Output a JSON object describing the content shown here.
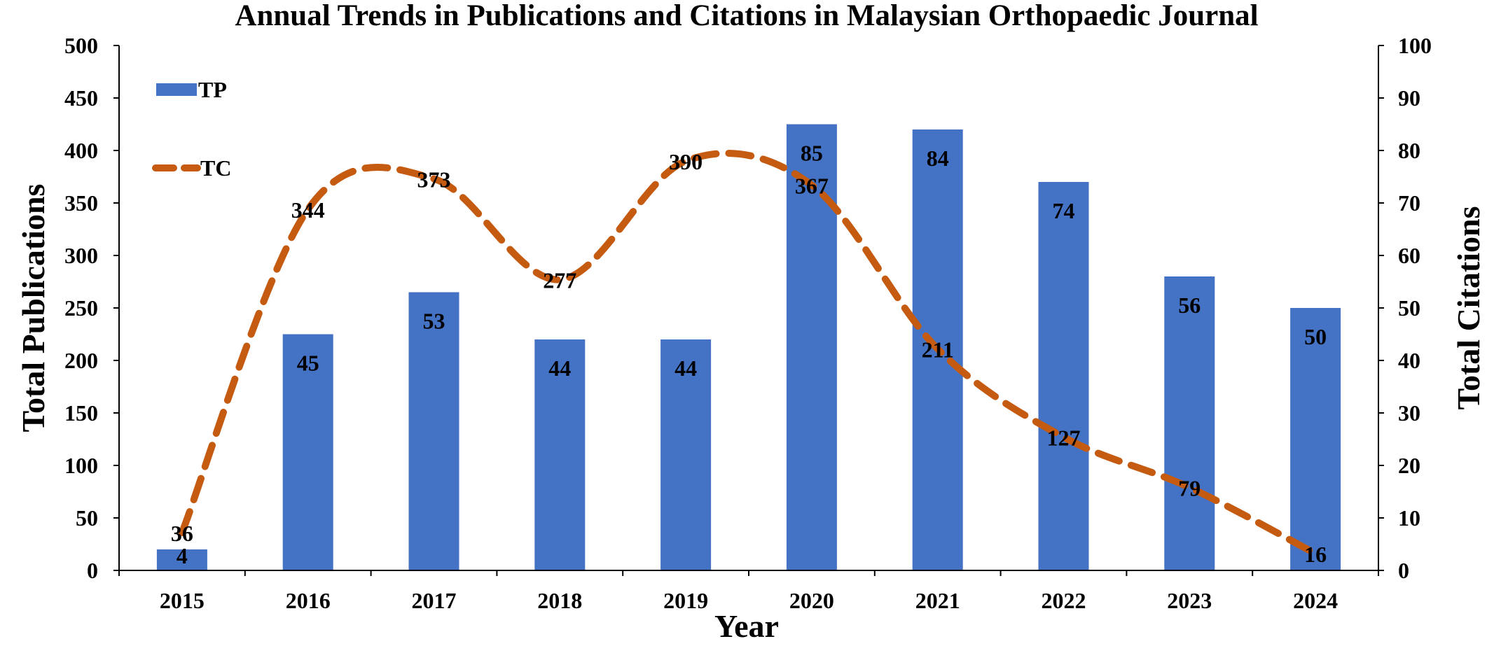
{
  "chart_data": {
    "type": "bar+line",
    "title": "Annual Trends in Publications and Citations in Malaysian Orthopaedic Journal",
    "xlabel": "Year",
    "ylabel_left": "Total Publications",
    "ylabel_right": "Total Citations",
    "categories": [
      "2015",
      "2016",
      "2017",
      "2018",
      "2019",
      "2020",
      "2021",
      "2022",
      "2023",
      "2024"
    ],
    "y_left": {
      "min": 0,
      "max": 500,
      "step": 50,
      "ticks": [
        "0",
        "50",
        "100",
        "150",
        "200",
        "250",
        "300",
        "350",
        "400",
        "450",
        "500"
      ]
    },
    "y_right": {
      "min": 0,
      "max": 100,
      "step": 10,
      "ticks": [
        "0",
        "10",
        "20",
        "30",
        "40",
        "50",
        "60",
        "70",
        "80",
        "90",
        "100"
      ]
    },
    "series": [
      {
        "name": "TP",
        "type": "bar",
        "axis": "right",
        "color": "#4472c4",
        "values": [
          4,
          45,
          53,
          44,
          44,
          85,
          84,
          74,
          56,
          50
        ],
        "labels": [
          "4",
          "45",
          "53",
          "44",
          "44",
          "85",
          "84",
          "74",
          "56",
          "50"
        ]
      },
      {
        "name": "TC",
        "type": "line",
        "style": "dashed-smooth",
        "axis": "left",
        "color": "#c55a11",
        "values": [
          36,
          344,
          373,
          277,
          390,
          367,
          211,
          127,
          79,
          16
        ],
        "labels": [
          "36",
          "344",
          "373",
          "277",
          "390",
          "367",
          "211",
          "127",
          "79",
          "16"
        ]
      }
    ],
    "legend": {
      "position": "top-left",
      "entries": [
        "TP",
        "TC"
      ]
    },
    "grid": false
  }
}
